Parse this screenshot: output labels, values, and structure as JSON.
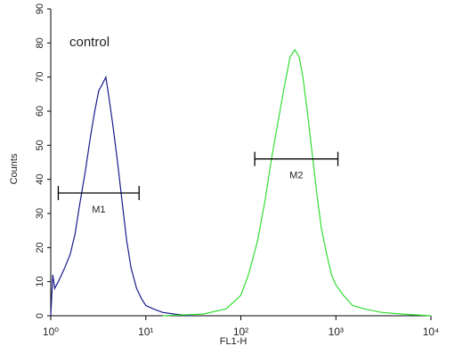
{
  "chart_data": {
    "type": "histogram-overlay",
    "annotation": "control",
    "xlabel": "FL1-H",
    "ylabel": "Counts",
    "xscale": "log",
    "xlim": [
      1,
      10000
    ],
    "xticks": [
      {
        "value": 1,
        "label": "10⁰"
      },
      {
        "value": 10,
        "label": "10¹"
      },
      {
        "value": 100,
        "label": "10²"
      },
      {
        "value": 1000,
        "label": "10³"
      },
      {
        "value": 10000,
        "label": "10⁴"
      }
    ],
    "ylim": [
      0,
      90
    ],
    "yticks": [
      0,
      10,
      20,
      30,
      40,
      50,
      60,
      70,
      80,
      90
    ],
    "series": [
      {
        "color": "#1a1a8c",
        "x": [
          1.0,
          1.05,
          1.1,
          1.2,
          1.4,
          1.6,
          1.8,
          2.0,
          2.3,
          2.6,
          2.9,
          3.2,
          3.5,
          3.8,
          4.1,
          4.5,
          5.0,
          5.6,
          6.3,
          7.0,
          8.0,
          9.0,
          10,
          12,
          15,
          20,
          30
        ],
        "values": [
          0,
          12,
          8,
          10,
          14,
          18,
          24,
          32,
          42,
          52,
          60,
          66,
          68,
          70,
          64,
          56,
          46,
          34,
          22,
          14,
          8,
          5,
          3,
          2,
          1,
          0.5,
          0
        ]
      },
      {
        "color": "#33dd33",
        "x": [
          15,
          40,
          70,
          100,
          120,
          150,
          180,
          210,
          250,
          290,
          330,
          370,
          410,
          450,
          500,
          560,
          630,
          700,
          800,
          900,
          1000,
          1200,
          1500,
          2000,
          3000,
          5000,
          10000
        ],
        "values": [
          0,
          0.5,
          2,
          6,
          12,
          22,
          34,
          46,
          58,
          68,
          76,
          78,
          76,
          70,
          60,
          48,
          36,
          26,
          18,
          12,
          9,
          6,
          3,
          2,
          1,
          0.5,
          0
        ]
      }
    ],
    "markers": [
      {
        "label": "M1",
        "range": [
          1.2,
          8.5
        ],
        "y": 36
      },
      {
        "label": "M2",
        "range": [
          140,
          1050
        ],
        "y": 46
      }
    ]
  }
}
